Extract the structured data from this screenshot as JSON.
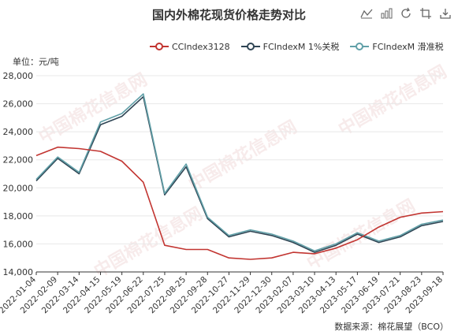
{
  "title": "国内外棉花现货价格走势对比",
  "unit": "单位：元/吨",
  "source": "数据来源：棉花展望（BCO）",
  "watermark": "中国棉花信息网",
  "toolbar": {
    "icons": [
      "line-chart-icon",
      "bar-chart-icon",
      "refresh-icon",
      "zoom-icon",
      "download-icon"
    ]
  },
  "colors": {
    "cc": "#c23531",
    "fc1": "#2f4554",
    "fc2": "#61a0a8",
    "axis": "#333333",
    "grid": "#e8e8e8"
  },
  "chart_data": {
    "type": "line",
    "ylim": [
      14000,
      28000
    ],
    "yticks": [
      "14,000",
      "16,000",
      "18,000",
      "20,000",
      "22,000",
      "24,000",
      "26,000",
      "28,000"
    ],
    "categories": [
      "2022-01-04",
      "2022-02-09",
      "2022-03-14",
      "2022-04-15",
      "2022-05-19",
      "2022-06-22",
      "2022-07-25",
      "2022-08-25",
      "2022-09-28",
      "2022-10-27",
      "2022-11-29",
      "2022-12-30",
      "2023-02-07",
      "2023-03-10",
      "2023-04-13",
      "2023-05-17",
      "2023-06-19",
      "2023-07-21",
      "2023-08-23",
      "2023-09-18"
    ],
    "series": [
      {
        "name": "CCIndex3128",
        "values": [
          22300,
          22900,
          22800,
          22600,
          21900,
          20400,
          15900,
          15600,
          15600,
          15000,
          14900,
          15000,
          15400,
          15300,
          15700,
          16300,
          17200,
          17900,
          18200,
          18300
        ]
      },
      {
        "name": "FCIndexM 1%关税",
        "values": [
          20500,
          22100,
          21000,
          24500,
          25100,
          26500,
          19500,
          21500,
          17800,
          16500,
          16900,
          16600,
          16100,
          15400,
          15900,
          16700,
          16100,
          16500,
          17300,
          17600
        ]
      },
      {
        "name": "FCIndexM 滑准税",
        "values": [
          20600,
          22200,
          21100,
          24700,
          25300,
          26700,
          19600,
          21700,
          17900,
          16600,
          17000,
          16700,
          16200,
          15500,
          16000,
          16800,
          16200,
          16600,
          17400,
          17700
        ]
      }
    ]
  }
}
